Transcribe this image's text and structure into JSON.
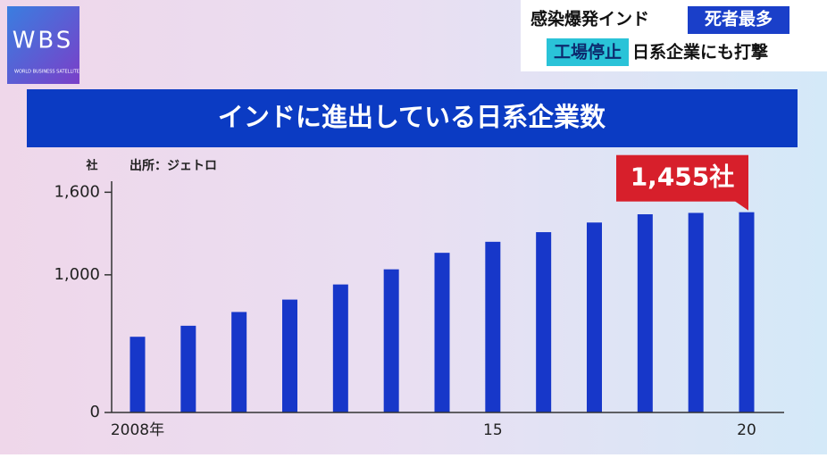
{
  "logo": {
    "letters": "WBS",
    "caption": "WORLD BUSINESS SATELLITE"
  },
  "header": {
    "line1": "感染爆発インド",
    "line1_tag": "死者最多",
    "line2_tag": "工場停止",
    "line2": "日系企業にも打撃"
  },
  "chart_data": {
    "type": "bar",
    "title": "インドに進出している日系企業数",
    "source": "出所：ジェトロ",
    "y_unit": "社",
    "categories": [
      "2008年",
      null,
      null,
      null,
      null,
      null,
      null,
      "15",
      null,
      null,
      null,
      null,
      "20"
    ],
    "values": [
      550,
      630,
      730,
      820,
      930,
      1040,
      1160,
      1240,
      1310,
      1380,
      1440,
      1450,
      1455
    ],
    "value_labels": [
      null,
      null,
      null,
      null,
      null,
      null,
      null,
      null,
      null,
      null,
      null,
      null,
      "1,455社"
    ],
    "color": "#1737c9",
    "ylim": [
      0,
      1680
    ],
    "yticks": [
      0,
      {
        "value": 1000,
        "label": "1,000"
      },
      {
        "value": 1600,
        "label": "1,600"
      }
    ],
    "grid": false
  }
}
